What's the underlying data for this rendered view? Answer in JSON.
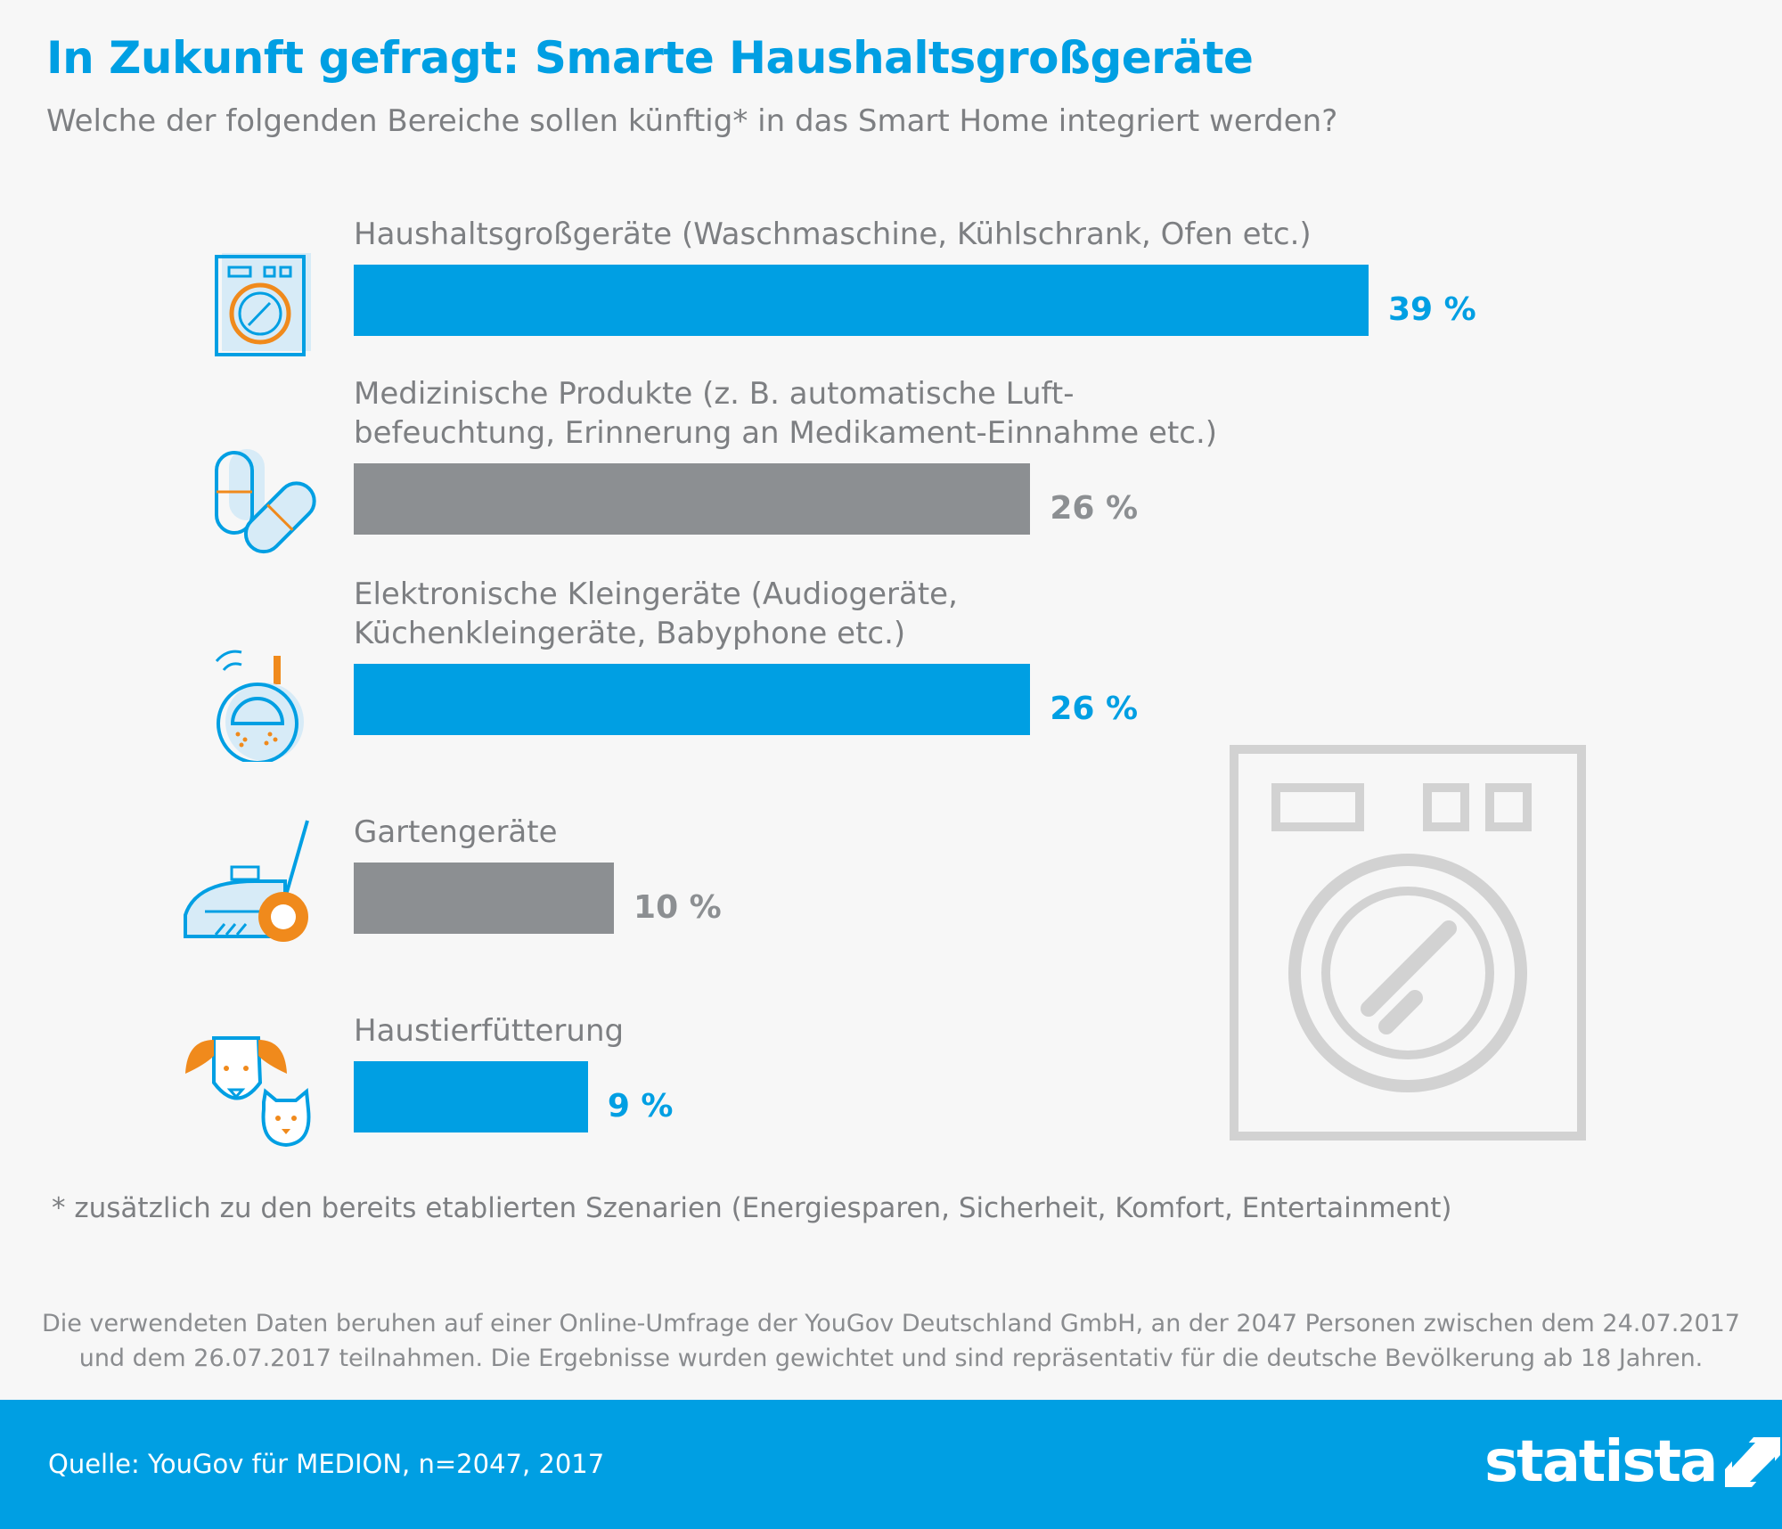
{
  "title": "In Zukunft gefragt: Smarte Haushaltsgroßgeräte",
  "subtitle": "Welche der folgenden Bereiche sollen künftig* in das Smart Home integriert werden?",
  "colors": {
    "blue": "#009fe3",
    "gray": "#8c8f92",
    "orange": "#f08a1c"
  },
  "chart_data": {
    "type": "bar",
    "orientation": "horizontal",
    "title": "In Zukunft gefragt: Smarte Haushaltsgroßgeräte",
    "unit": "%",
    "xlim": [
      0,
      39
    ],
    "categories": [
      [
        "Haushaltsgroßgeräte (Waschmaschine, Kühlschrank, Ofen etc.)"
      ],
      [
        "Medizinische Produkte (z. B. automatische Luft-",
        "befeuchtung, Erinnerung an Medikament-Einnahme etc.)"
      ],
      [
        "Elektronische Kleingeräte (Audiogeräte,",
        "Küchenkleingeräte, Babyphone etc.)"
      ],
      [
        "Gartengeräte"
      ],
      [
        "Haustierfütterung"
      ]
    ],
    "values": [
      39,
      26,
      26,
      10,
      9
    ],
    "value_labels": [
      "39 %",
      "26 %",
      "26 %",
      "10 %",
      "9 %"
    ],
    "bar_colors": [
      "blue",
      "gray",
      "blue",
      "gray",
      "blue"
    ],
    "icons": [
      "washing-machine-icon",
      "pills-icon",
      "baby-monitor-icon",
      "lawn-mower-icon",
      "pets-icon"
    ]
  },
  "footnote": "* zusätzlich zu den bereits etablierten Szenarien (Energiesparen, Sicherheit, Komfort, Entertainment)",
  "source_text": [
    "Die verwendeten Daten beruhen auf einer Online-Umfrage der YouGov Deutschland GmbH, an der 2047 Personen zwischen dem 24.07.2017",
    "und dem 26.07.2017 teilnahmen. Die Ergebnisse wurden gewichtet und sind repräsentativ für die deutsche Bevölkerung ab 18 Jahren."
  ],
  "footer": {
    "source": "Quelle: YouGov für MEDION, n=2047, 2017",
    "logo": "statista"
  }
}
